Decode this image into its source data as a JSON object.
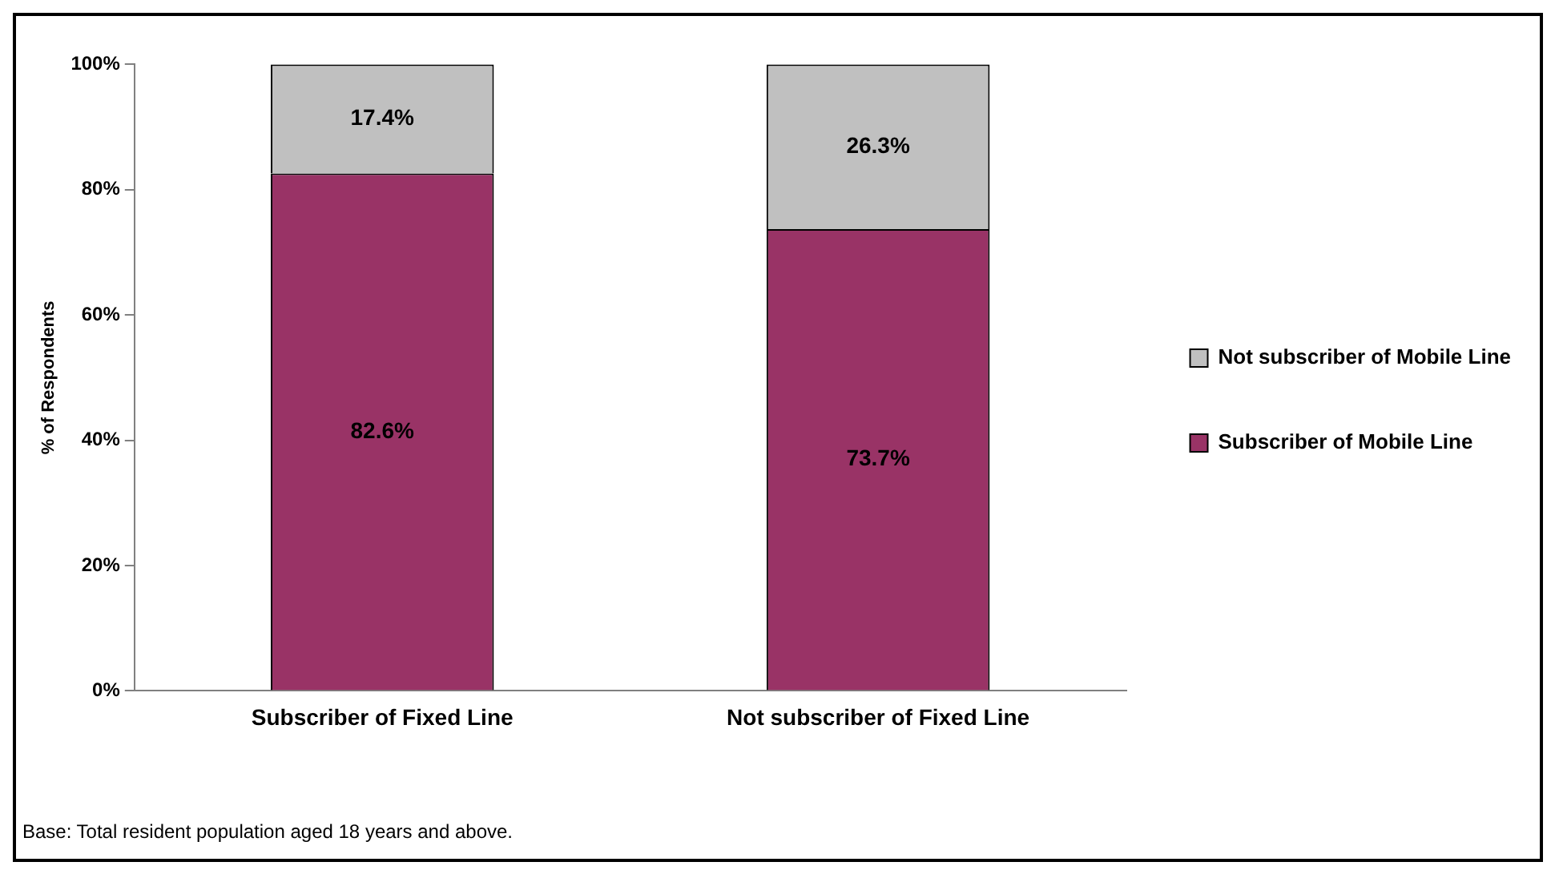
{
  "chart_data": {
    "type": "bar",
    "stacked": true,
    "ylabel": "% of Respondents",
    "categories": [
      "Subscriber of Fixed Line",
      "Not subscriber of Fixed Line"
    ],
    "series": [
      {
        "name": "Subscriber of Mobile Line",
        "color": "#993366",
        "values": [
          82.6,
          73.7
        ],
        "value_labels": [
          "82.6%",
          "73.7%"
        ]
      },
      {
        "name": "Not subscriber of Mobile Line",
        "color": "#c0c0c0",
        "values": [
          17.4,
          26.3
        ],
        "value_labels": [
          "17.4%",
          "26.3%"
        ]
      }
    ],
    "ylim": [
      0,
      100
    ],
    "yticks": [
      {
        "value": 0,
        "label": "0%"
      },
      {
        "value": 20,
        "label": "20%"
      },
      {
        "value": 40,
        "label": "40%"
      },
      {
        "value": 60,
        "label": "60%"
      },
      {
        "value": 80,
        "label": "80%"
      },
      {
        "value": 100,
        "label": "100%"
      }
    ],
    "grid": false,
    "legend": "right",
    "annotations": [
      "Base: Total resident population aged 18 years and above."
    ]
  }
}
